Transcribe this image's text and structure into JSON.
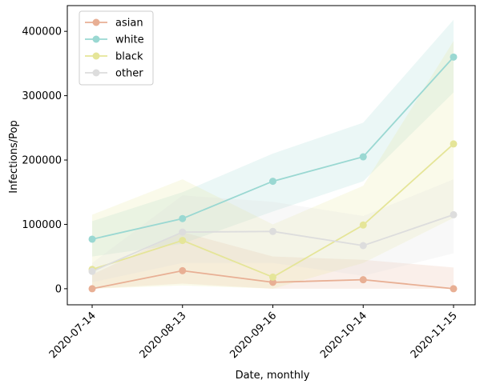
{
  "chart_data": {
    "type": "line",
    "xlabel": "Date, monthly",
    "ylabel": "Infections/Pop",
    "categories": [
      "2020-07-14",
      "2020-08-13",
      "2020-09-16",
      "2020-10-14",
      "2020-11-15"
    ],
    "ylim": [
      -25000,
      440000
    ],
    "yticks": [
      0,
      100000,
      200000,
      300000,
      400000
    ],
    "ytick_labels": [
      "0",
      "100000",
      "200000",
      "300000",
      "400000"
    ],
    "grid": false,
    "legend_position": "top-left",
    "series": [
      {
        "name": "asian",
        "color": "#e8af94",
        "values": [
          0,
          28000,
          10000,
          14000,
          0
        ],
        "lower": [
          0,
          8000,
          0,
          0,
          0
        ],
        "upper": [
          22000,
          88000,
          50000,
          45000,
          33000
        ]
      },
      {
        "name": "white",
        "color": "#9ad8d2",
        "values": [
          77000,
          109000,
          167000,
          205000,
          360000
        ],
        "lower": [
          50000,
          70000,
          120000,
          167000,
          305000
        ],
        "upper": [
          105000,
          150000,
          210000,
          258000,
          418000
        ]
      },
      {
        "name": "black",
        "color": "#e5e598",
        "values": [
          30000,
          75000,
          18000,
          99000,
          225000
        ],
        "lower": [
          0,
          5000,
          0,
          40000,
          110000
        ],
        "upper": [
          115000,
          170000,
          100000,
          160000,
          385000
        ]
      },
      {
        "name": "other",
        "color": "#dddddd",
        "values": [
          27000,
          88000,
          89000,
          67000,
          115000
        ],
        "lower": [
          10000,
          40000,
          40000,
          20000,
          55000
        ],
        "upper": [
          40000,
          145000,
          135000,
          113000,
          170000
        ]
      }
    ]
  }
}
